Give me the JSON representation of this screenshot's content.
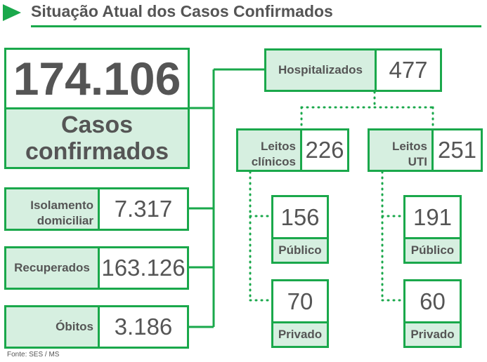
{
  "header": {
    "title": "Situação Atual dos Casos Confirmados"
  },
  "total": {
    "value": "174.106",
    "label_line1": "Casos",
    "label_line2": "confirmados"
  },
  "outcomes": [
    {
      "label_line1": "Isolamento",
      "label_line2": "domiciliar",
      "value": "7.317"
    },
    {
      "label_line1": "Recuperados",
      "label_line2": "",
      "value": "163.126"
    },
    {
      "label_line1": "Óbitos",
      "label_line2": "",
      "value": "3.186"
    }
  ],
  "hospitalized": {
    "label": "Hospitalizados",
    "value": "477"
  },
  "clinical_beds": {
    "label_line1": "Leitos",
    "label_line2": "clínicos",
    "value": "226",
    "public": {
      "value": "156",
      "label": "Público"
    },
    "private": {
      "value": "70",
      "label": "Privado"
    }
  },
  "icu_beds": {
    "label_line1": "Leitos",
    "label_line2": "UTI",
    "value": "251",
    "public": {
      "value": "191",
      "label": "Público"
    },
    "private": {
      "value": "60",
      "label": "Privado"
    }
  },
  "footer": {
    "source": "Fonte: SES / MS"
  },
  "colors": {
    "accent": "#1aa84b",
    "label_fill": "#d6efe0",
    "text": "#555555"
  }
}
